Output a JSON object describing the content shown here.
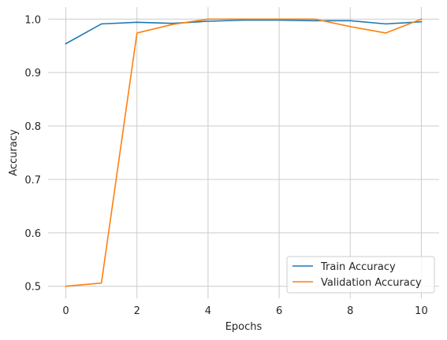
{
  "chart_data": {
    "type": "line",
    "title": "",
    "xlabel": "Epochs",
    "ylabel": "Accuracy",
    "xlim": [
      -0.5,
      10.5
    ],
    "ylim": [
      0.4775,
      1.0225
    ],
    "xticks": [
      0,
      2,
      4,
      6,
      8,
      10
    ],
    "xtick_labels": [
      "0",
      "2",
      "4",
      "6",
      "8",
      "10"
    ],
    "yticks": [
      0.5,
      0.6,
      0.7,
      0.8,
      0.9,
      1.0
    ],
    "ytick_labels": [
      "0.5",
      "0.6",
      "0.7",
      "0.8",
      "0.9",
      "1.0"
    ],
    "grid": true,
    "legend_position": "lower-right",
    "x": [
      0,
      1,
      2,
      3,
      4,
      5,
      6,
      7,
      8,
      9,
      10
    ],
    "series": [
      {
        "name": "Train Accuracy",
        "color": "#1f77b4",
        "values": [
          0.954,
          0.991,
          0.994,
          0.992,
          0.996,
          0.998,
          0.998,
          0.997,
          0.997,
          0.991,
          0.995
        ]
      },
      {
        "name": "Validation Accuracy",
        "color": "#ff7f0e",
        "values": [
          0.5,
          0.506,
          0.974,
          0.99,
          1.0,
          1.0,
          1.0,
          1.0,
          0.986,
          0.974,
          1.0
        ]
      }
    ]
  }
}
